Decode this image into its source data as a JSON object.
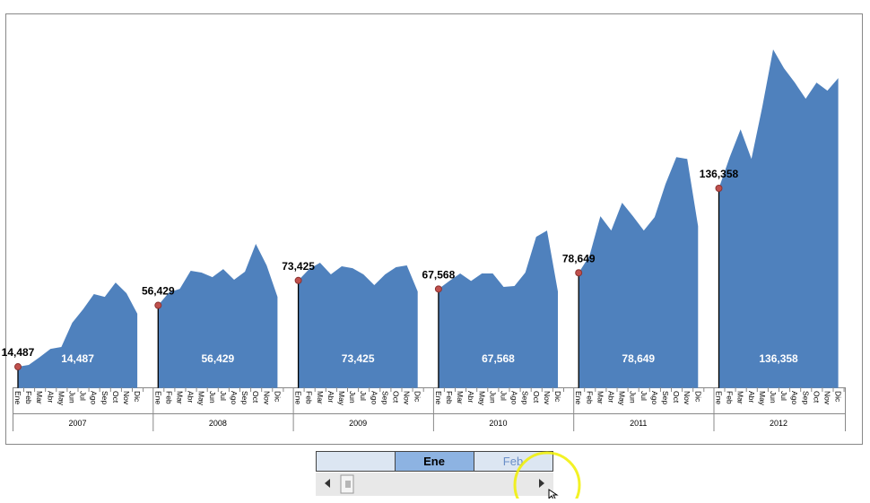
{
  "chart_data": {
    "type": "area",
    "color": "#4f81bd",
    "marker_color": "#c0504d",
    "ylim": [
      0,
      250000
    ],
    "categories": [
      "Ene",
      "Feb",
      "Mar",
      "Abr",
      "May",
      "Jun",
      "Jul",
      "Ago",
      "Sep",
      "Oct",
      "Nov",
      "Dic"
    ],
    "groups": [
      {
        "name": "2007",
        "values": [
          14487,
          15700,
          21000,
          26700,
          28000,
          44500,
          53700,
          64100,
          62200,
          72000,
          64700,
          50700
        ],
        "value_labels": [
          "14,487",
          null,
          null,
          null,
          null,
          null,
          null,
          null,
          null,
          null,
          null,
          null
        ]
      },
      {
        "name": "2008",
        "values": [
          56429,
          65200,
          67700,
          80000,
          78800,
          75700,
          81200,
          73900,
          79400,
          98400,
          83700,
          62200
        ],
        "value_labels": [
          "56,429",
          null,
          null,
          null,
          null,
          null,
          null,
          null,
          null,
          null,
          null,
          null
        ]
      },
      {
        "name": "2009",
        "values": [
          73425,
          81200,
          85500,
          77600,
          83100,
          81800,
          77600,
          70200,
          77600,
          82500,
          83700,
          65900
        ],
        "value_labels": [
          "73,425",
          null,
          null,
          null,
          null,
          null,
          null,
          null,
          null,
          null,
          null,
          null
        ]
      },
      {
        "name": "2010",
        "values": [
          67568,
          73100,
          78200,
          73100,
          78200,
          78200,
          69000,
          69600,
          78800,
          103200,
          107500,
          65900
        ],
        "value_labels": [
          "67,568",
          null,
          null,
          null,
          null,
          null,
          null,
          null,
          null,
          null,
          null,
          null
        ]
      },
      {
        "name": "2011",
        "values": [
          78649,
          90300,
          117300,
          107500,
          126500,
          117300,
          107500,
          116700,
          139300,
          157600,
          156400,
          110500
        ],
        "value_labels": [
          "78,649",
          null,
          null,
          null,
          null,
          null,
          null,
          null,
          null,
          null,
          null,
          null
        ]
      },
      {
        "name": "2012",
        "values": [
          136358,
          157600,
          176600,
          156400,
          191900,
          231200,
          218300,
          208500,
          197500,
          208500,
          203000,
          211600
        ],
        "value_labels": [
          "136,358",
          null,
          null,
          null,
          null,
          null,
          null,
          null,
          null,
          null,
          null,
          null
        ]
      }
    ]
  },
  "scroll_control": {
    "selected": "Ene",
    "next": "Feb"
  }
}
